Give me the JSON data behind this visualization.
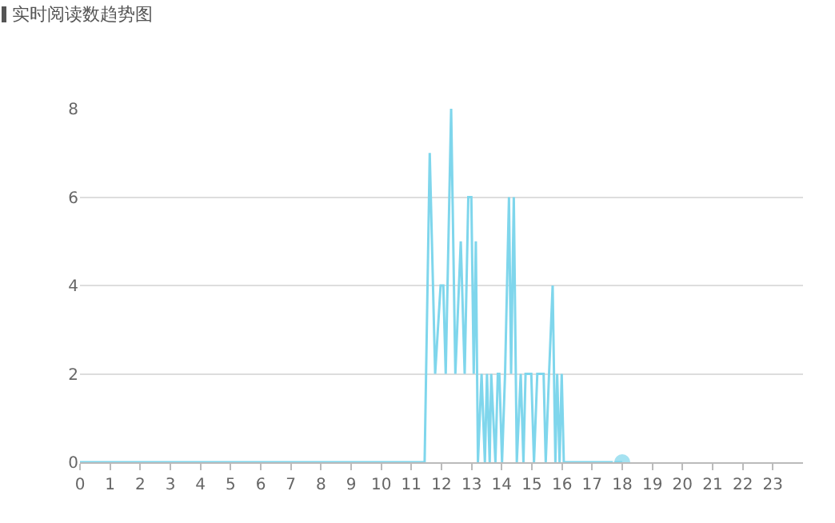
{
  "chart_data": {
    "type": "line",
    "title": "实时阅读数趋势图",
    "x": [
      0,
      11.44,
      11.61,
      11.79,
      11.97,
      12.06,
      12.14,
      12.32,
      12.46,
      12.64,
      12.77,
      12.89,
      12.99,
      13.07,
      13.14,
      13.21,
      13.33,
      13.44,
      13.51,
      13.6,
      13.65,
      13.79,
      13.87,
      13.92,
      14.01,
      14.11,
      14.24,
      14.31,
      14.4,
      14.5,
      14.63,
      14.72,
      14.79,
      14.98,
      15.07,
      15.18,
      15.39,
      15.46,
      15.57,
      15.69,
      15.78,
      15.84,
      15.92,
      15.99,
      16.06,
      18
    ],
    "series": [
      {
        "color": "#7fd6ec",
        "values": [
          0,
          0,
          7,
          2,
          4,
          4,
          2,
          8,
          2,
          5,
          2,
          6,
          6,
          2,
          5,
          0,
          2,
          0,
          2,
          0,
          2,
          0,
          2,
          2,
          0,
          2,
          6,
          2,
          6,
          0,
          2,
          0,
          2,
          2,
          0,
          2,
          2,
          0,
          2,
          4,
          0,
          2,
          0,
          2,
          0,
          0
        ]
      }
    ],
    "xlim": [
      0,
      24
    ],
    "xticks": [
      0,
      1,
      2,
      3,
      4,
      5,
      6,
      7,
      8,
      9,
      10,
      11,
      12,
      13,
      14,
      15,
      16,
      17,
      18,
      19,
      20,
      21,
      22,
      23
    ],
    "ylim": [
      0,
      8
    ],
    "yticks": [
      0,
      2,
      4,
      6,
      8
    ],
    "grid": "y"
  }
}
